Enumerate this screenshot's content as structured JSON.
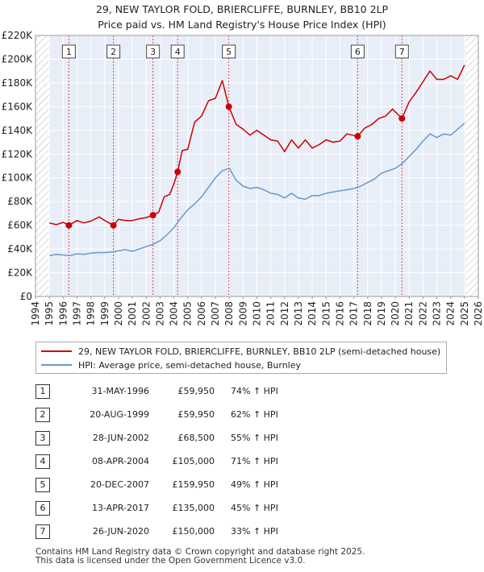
{
  "title": {
    "line1": "29, NEW TAYLOR FOLD, BRIERCLIFFE, BURNLEY, BB10 2LP",
    "line2": "Price paid vs. HM Land Registry's House Price Index (HPI)"
  },
  "colors": {
    "property": "#cc0000",
    "hpi": "#6699cc",
    "shade": "#e8eef8",
    "hatch": "#bbbbbb",
    "grid": "#cccccc",
    "marker": "#cc0000"
  },
  "chart_data": {
    "type": "line",
    "title": "29, NEW TAYLOR FOLD, BRIERCLIFFE, BURNLEY, BB10 2LP — Price paid vs. HM Land Registry's House Price Index (HPI)",
    "xlim": [
      1994,
      2026
    ],
    "ylim": [
      0,
      220000
    ],
    "x_ticks": [
      1994,
      1995,
      1996,
      1997,
      1998,
      1999,
      2000,
      2001,
      2002,
      2003,
      2004,
      2005,
      2006,
      2007,
      2008,
      2009,
      2010,
      2011,
      2012,
      2013,
      2014,
      2015,
      2016,
      2017,
      2018,
      2019,
      2020,
      2021,
      2022,
      2023,
      2024,
      2025,
      2026
    ],
    "y_ticks": [
      {
        "value": 0,
        "label": "£0"
      },
      {
        "value": 20000,
        "label": "£20K"
      },
      {
        "value": 40000,
        "label": "£40K"
      },
      {
        "value": 60000,
        "label": "£60K"
      },
      {
        "value": 80000,
        "label": "£80K"
      },
      {
        "value": 100000,
        "label": "£100K"
      },
      {
        "value": 120000,
        "label": "£120K"
      },
      {
        "value": 140000,
        "label": "£140K"
      },
      {
        "value": 160000,
        "label": "£160K"
      },
      {
        "value": 180000,
        "label": "£180K"
      },
      {
        "value": 200000,
        "label": "£200K"
      },
      {
        "value": 220000,
        "label": "£220K"
      }
    ],
    "data_range": [
      1995.0,
      2025.1
    ],
    "series": [
      {
        "name": "29, NEW TAYLOR FOLD, BRIERCLIFFE, BURNLEY, BB10 2LP (semi-detached house)",
        "points": [
          [
            1995.0,
            62000
          ],
          [
            1995.5,
            60500
          ],
          [
            1996.0,
            62500
          ],
          [
            1996.41,
            59950
          ],
          [
            1997.0,
            64000
          ],
          [
            1997.5,
            62000
          ],
          [
            1998.0,
            63500
          ],
          [
            1998.6,
            67000
          ],
          [
            1999.0,
            64000
          ],
          [
            1999.63,
            59950
          ],
          [
            2000.0,
            65000
          ],
          [
            2000.5,
            64000
          ],
          [
            2001.0,
            64000
          ],
          [
            2001.5,
            65500
          ],
          [
            2002.0,
            66500
          ],
          [
            2002.49,
            68500
          ],
          [
            2002.9,
            71000
          ],
          [
            2003.3,
            84000
          ],
          [
            2003.7,
            86000
          ],
          [
            2004.0,
            95000
          ],
          [
            2004.27,
            105000
          ],
          [
            2004.6,
            123000
          ],
          [
            2005.0,
            124000
          ],
          [
            2005.5,
            147000
          ],
          [
            2006.0,
            152000
          ],
          [
            2006.5,
            165000
          ],
          [
            2007.0,
            167000
          ],
          [
            2007.5,
            182000
          ],
          [
            2007.97,
            159950
          ],
          [
            2008.5,
            145000
          ],
          [
            2009.0,
            141000
          ],
          [
            2009.5,
            136000
          ],
          [
            2010.0,
            140000
          ],
          [
            2010.5,
            136000
          ],
          [
            2011.0,
            132000
          ],
          [
            2011.5,
            131000
          ],
          [
            2012.0,
            122000
          ],
          [
            2012.5,
            132000
          ],
          [
            2013.0,
            125000
          ],
          [
            2013.5,
            132000
          ],
          [
            2014.0,
            125000
          ],
          [
            2014.5,
            128000
          ],
          [
            2015.0,
            132000
          ],
          [
            2015.5,
            130000
          ],
          [
            2016.0,
            131000
          ],
          [
            2016.5,
            137000
          ],
          [
            2017.28,
            135000
          ],
          [
            2017.8,
            142000
          ],
          [
            2018.3,
            145000
          ],
          [
            2018.8,
            150000
          ],
          [
            2019.3,
            152000
          ],
          [
            2019.8,
            158000
          ],
          [
            2020.48,
            150000
          ],
          [
            2021.0,
            164000
          ],
          [
            2021.5,
            172000
          ],
          [
            2022.0,
            181000
          ],
          [
            2022.5,
            190000
          ],
          [
            2023.0,
            183000
          ],
          [
            2023.5,
            183000
          ],
          [
            2024.0,
            186000
          ],
          [
            2024.5,
            183000
          ],
          [
            2025.0,
            195000
          ]
        ]
      },
      {
        "name": "HPI: Average price, semi-detached house, Burnley",
        "points": [
          [
            1995.0,
            34500
          ],
          [
            1995.5,
            35500
          ],
          [
            1996.0,
            35000
          ],
          [
            1996.5,
            34500
          ],
          [
            1997.0,
            36000
          ],
          [
            1997.5,
            35500
          ],
          [
            1998.0,
            36500
          ],
          [
            1998.5,
            37000
          ],
          [
            1999.0,
            37000
          ],
          [
            1999.5,
            37500
          ],
          [
            2000.0,
            38500
          ],
          [
            2000.5,
            39500
          ],
          [
            2001.0,
            38000
          ],
          [
            2001.5,
            40000
          ],
          [
            2002.0,
            42000
          ],
          [
            2002.5,
            44000
          ],
          [
            2003.0,
            47000
          ],
          [
            2003.5,
            52000
          ],
          [
            2004.0,
            58000
          ],
          [
            2004.5,
            66000
          ],
          [
            2005.0,
            73000
          ],
          [
            2005.5,
            78000
          ],
          [
            2006.0,
            84000
          ],
          [
            2006.5,
            92000
          ],
          [
            2007.0,
            100000
          ],
          [
            2007.5,
            106000
          ],
          [
            2008.0,
            108000
          ],
          [
            2008.5,
            98000
          ],
          [
            2009.0,
            93000
          ],
          [
            2009.5,
            91000
          ],
          [
            2010.0,
            92000
          ],
          [
            2010.5,
            90000
          ],
          [
            2011.0,
            87000
          ],
          [
            2011.5,
            86000
          ],
          [
            2012.0,
            83000
          ],
          [
            2012.5,
            87000
          ],
          [
            2013.0,
            83000
          ],
          [
            2013.5,
            82000
          ],
          [
            2014.0,
            85000
          ],
          [
            2014.5,
            85000
          ],
          [
            2015.0,
            87000
          ],
          [
            2015.5,
            88000
          ],
          [
            2016.0,
            89000
          ],
          [
            2016.5,
            90000
          ],
          [
            2017.0,
            91000
          ],
          [
            2017.5,
            93000
          ],
          [
            2018.0,
            96000
          ],
          [
            2018.5,
            99000
          ],
          [
            2019.0,
            104000
          ],
          [
            2019.5,
            106000
          ],
          [
            2020.0,
            108000
          ],
          [
            2020.5,
            112000
          ],
          [
            2021.0,
            118000
          ],
          [
            2021.5,
            124000
          ],
          [
            2022.0,
            131000
          ],
          [
            2022.5,
            137000
          ],
          [
            2023.0,
            134000
          ],
          [
            2023.5,
            137000
          ],
          [
            2024.0,
            136000
          ],
          [
            2024.5,
            141000
          ],
          [
            2025.0,
            146000
          ]
        ]
      }
    ],
    "sales": [
      {
        "num": "1",
        "x": 1996.41,
        "price": 59950
      },
      {
        "num": "2",
        "x": 1999.63,
        "price": 59950
      },
      {
        "num": "3",
        "x": 2002.49,
        "price": 68500
      },
      {
        "num": "4",
        "x": 2004.27,
        "price": 105000
      },
      {
        "num": "5",
        "x": 2007.97,
        "price": 159950
      },
      {
        "num": "6",
        "x": 2017.28,
        "price": 135000
      },
      {
        "num": "7",
        "x": 2020.48,
        "price": 150000
      }
    ]
  },
  "legend": {
    "property": "29, NEW TAYLOR FOLD, BRIERCLIFFE, BURNLEY, BB10 2LP (semi-detached house)",
    "hpi": "HPI: Average price, semi-detached house, Burnley"
  },
  "sales_table": [
    {
      "num": "1",
      "date": "31-MAY-1996",
      "price": "£59,950",
      "hpi": "74% ↑ HPI"
    },
    {
      "num": "2",
      "date": "20-AUG-1999",
      "price": "£59,950",
      "hpi": "62% ↑ HPI"
    },
    {
      "num": "3",
      "date": "28-JUN-2002",
      "price": "£68,500",
      "hpi": "55% ↑ HPI"
    },
    {
      "num": "4",
      "date": "08-APR-2004",
      "price": "£105,000",
      "hpi": "71% ↑ HPI"
    },
    {
      "num": "5",
      "date": "20-DEC-2007",
      "price": "£159,950",
      "hpi": "49% ↑ HPI"
    },
    {
      "num": "6",
      "date": "13-APR-2017",
      "price": "£135,000",
      "hpi": "45% ↑ HPI"
    },
    {
      "num": "7",
      "date": "26-JUN-2020",
      "price": "£150,000",
      "hpi": "33% ↑ HPI"
    }
  ],
  "footer": {
    "line1": "Contains HM Land Registry data © Crown copyright and database right 2025.",
    "line2": "This data is licensed under the Open Government Licence v3.0."
  }
}
